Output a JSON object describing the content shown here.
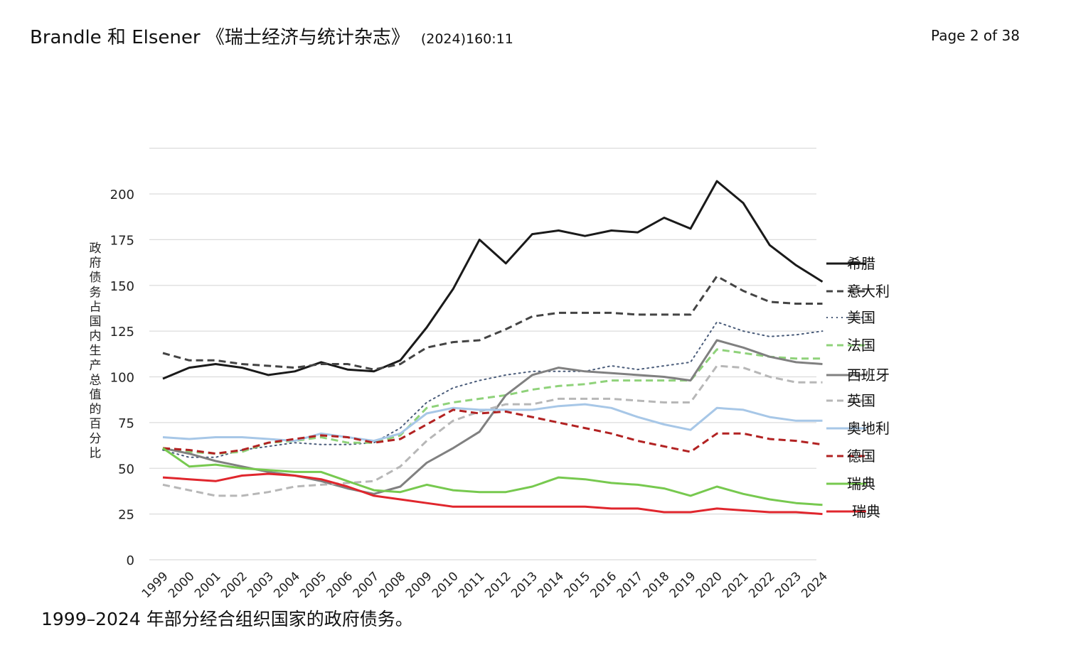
{
  "header": {
    "citation": "Brandle 和 Elsener 《瑞士经济与统计杂志》",
    "volume": "(2024)160:11",
    "page": "Page 2 of 38"
  },
  "caption": "1999–2024 年部分经合组织国家的政府债务。",
  "chart_data": {
    "type": "line",
    "title": "",
    "xlabel": "",
    "ylabel": "政府债务占国内生产总值的百分比",
    "ylim": [
      0,
      225
    ],
    "yticks": [
      0,
      25,
      50,
      75,
      100,
      125,
      150,
      175,
      200
    ],
    "grid": true,
    "legend_position": "right",
    "categories": [
      "1999",
      "2000",
      "2001",
      "2002",
      "2003",
      "2004",
      "2005",
      "2006",
      "2007",
      "2008",
      "2009",
      "2010",
      "2011",
      "2012",
      "2013",
      "2014",
      "2015",
      "2016",
      "2017",
      "2018",
      "2019",
      "2020",
      "2021",
      "2022",
      "2023",
      "2024"
    ],
    "series": [
      {
        "name": "希腊",
        "color": "#1a1a1a",
        "style": "solid",
        "width": 3,
        "values": [
          99,
          105,
          107,
          105,
          101,
          103,
          108,
          104,
          103,
          109,
          127,
          148,
          175,
          162,
          178,
          180,
          177,
          180,
          179,
          187,
          181,
          207,
          195,
          172,
          161,
          152
        ]
      },
      {
        "name": "意大利",
        "color": "#444444",
        "style": "dashed",
        "width": 3,
        "values": [
          113,
          109,
          109,
          107,
          106,
          105,
          107,
          107,
          104,
          107,
          116,
          119,
          120,
          126,
          133,
          135,
          135,
          135,
          134,
          134,
          134,
          155,
          147,
          141,
          140,
          140
        ]
      },
      {
        "name": "美国",
        "color": "#4a5c7a",
        "style": "dotted",
        "width": 2,
        "values": [
          60,
          56,
          56,
          60,
          62,
          64,
          63,
          63,
          64,
          72,
          86,
          94,
          98,
          101,
          103,
          103,
          103,
          106,
          104,
          106,
          108,
          130,
          125,
          122,
          123,
          125
        ]
      },
      {
        "name": "法国",
        "color": "#8fd27a",
        "style": "dashed",
        "width": 3,
        "values": [
          61,
          59,
          58,
          59,
          64,
          65,
          67,
          64,
          64,
          68,
          83,
          86,
          88,
          90,
          93,
          95,
          96,
          98,
          98,
          98,
          98,
          115,
          113,
          111,
          110,
          110
        ]
      },
      {
        "name": "西班牙",
        "color": "#808080",
        "style": "solid",
        "width": 3,
        "values": [
          61,
          58,
          54,
          51,
          48,
          46,
          43,
          39,
          36,
          40,
          53,
          61,
          70,
          90,
          101,
          105,
          103,
          102,
          101,
          100,
          98,
          120,
          116,
          111,
          108,
          107
        ]
      },
      {
        "name": "英国",
        "color": "#b7b7b7",
        "style": "dashed",
        "width": 3,
        "values": [
          41,
          38,
          35,
          35,
          37,
          40,
          41,
          42,
          43,
          51,
          65,
          76,
          81,
          85,
          85,
          88,
          88,
          88,
          87,
          86,
          86,
          106,
          105,
          100,
          97,
          97
        ]
      },
      {
        "name": "奥地利",
        "color": "#a7c7e7",
        "style": "solid",
        "width": 3,
        "values": [
          67,
          66,
          67,
          67,
          66,
          65,
          69,
          67,
          65,
          69,
          80,
          83,
          82,
          82,
          82,
          84,
          85,
          83,
          78,
          74,
          71,
          83,
          82,
          78,
          76,
          76
        ]
      },
      {
        "name": "德国",
        "color": "#b22222",
        "style": "dashed",
        "width": 3,
        "values": [
          61,
          60,
          58,
          60,
          64,
          66,
          68,
          67,
          64,
          66,
          74,
          82,
          80,
          81,
          78,
          75,
          72,
          69,
          65,
          62,
          59,
          69,
          69,
          66,
          65,
          63
        ]
      },
      {
        "name": "瑞典",
        "color": "#77c94f",
        "style": "solid",
        "width": 3,
        "values": [
          61,
          51,
          52,
          50,
          49,
          48,
          48,
          43,
          38,
          37,
          41,
          38,
          37,
          37,
          40,
          45,
          44,
          42,
          41,
          39,
          35,
          40,
          36,
          33,
          31,
          30
        ]
      },
      {
        "name": "瑞典",
        "color": "#e0262d",
        "style": "solid",
        "width": 3,
        "values": [
          45,
          44,
          43,
          46,
          47,
          46,
          44,
          40,
          35,
          33,
          31,
          29,
          29,
          29,
          29,
          29,
          29,
          28,
          28,
          26,
          26,
          28,
          27,
          26,
          26,
          25
        ]
      }
    ]
  }
}
